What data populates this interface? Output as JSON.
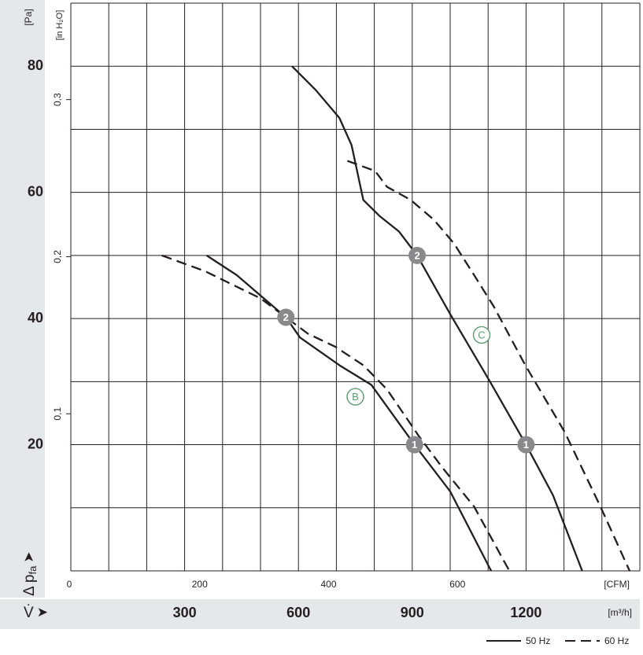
{
  "chart_data": {
    "type": "line",
    "y_unit": "[Pa]",
    "y2_unit": "[in H₂O]",
    "x_unit": "[m³/h]",
    "x2_unit": "[CFM]",
    "y_label": "Δ p",
    "y_label_sub": "fa",
    "y_arrow": "➤",
    "x_label": "V̇",
    "x_arrow": "➤",
    "xlim": [
      0,
      1500
    ],
    "ylim": [
      0,
      90
    ],
    "xticks": [
      300,
      600,
      900,
      1200
    ],
    "yticks": [
      20,
      40,
      60,
      80
    ],
    "x2lim": [
      0,
      883
    ],
    "x2ticks": [
      0,
      200,
      400,
      600
    ],
    "y2lim": [
      0,
      0.3614
    ],
    "y2ticks": [
      {
        "value": 0.3,
        "label": "0,3"
      },
      {
        "value": 0.2,
        "label": "0,2"
      },
      {
        "value": 0.1,
        "label": "0,1"
      }
    ],
    "xgrid": [
      0,
      100,
      200,
      300,
      400,
      500,
      600,
      700,
      800,
      900,
      1000,
      1100,
      1200,
      1300,
      1400,
      1500
    ],
    "ygrid": [
      0,
      10,
      20,
      30,
      40,
      50,
      60,
      70,
      80,
      90
    ],
    "legend": [
      {
        "name": "50 Hz",
        "style": "solid"
      },
      {
        "name": "60 Hz",
        "style": "dashed"
      }
    ],
    "curves": [
      {
        "label": "B",
        "label_x": 750,
        "label_y": 27.6,
        "series": [
          {
            "style": "solid",
            "x": [
              358,
              437,
              567,
              604,
              708,
              792,
              906,
              1000,
              1108
            ],
            "values": [
              50,
              46.9,
              40.2,
              37,
              32.6,
              29.5,
              20,
              12.6,
              0
            ]
          },
          {
            "style": "dashed",
            "x": [
              240,
              354,
              500,
              567,
              625,
              698,
              771,
              833,
              917,
              979,
              1063,
              1156
            ],
            "values": [
              50,
              47.5,
              43.2,
              40.2,
              37.6,
              35.5,
              32.6,
              28.8,
              21.4,
              16.4,
              10.2,
              0
            ]
          }
        ]
      },
      {
        "label": "C",
        "label_x": 1083,
        "label_y": 37.4,
        "series": [
          {
            "style": "solid",
            "x": [
              583,
              646,
              708,
              740,
              771,
              813,
              865,
              913,
              1000,
              1104,
              1200,
              1271,
              1348
            ],
            "values": [
              80,
              76.2,
              71.8,
              67.5,
              58.8,
              56.3,
              53.8,
              50,
              40.7,
              30.1,
              20,
              12,
              0
            ]
          },
          {
            "style": "dashed",
            "x": [
              729,
              802,
              833,
              896,
              958,
              1010,
              1063,
              1115,
              1198,
              1302,
              1396,
              1473
            ],
            "values": [
              65,
              63.4,
              60.9,
              58.8,
              55.6,
              51.9,
              46.9,
              41.9,
              32.6,
              22,
              10.2,
              0
            ]
          }
        ]
      }
    ],
    "points": [
      {
        "label": "2",
        "x": 567,
        "y": 40.2
      },
      {
        "label": "2",
        "x": 913,
        "y": 50
      },
      {
        "label": "1",
        "x": 906,
        "y": 20
      },
      {
        "label": "1",
        "x": 1200,
        "y": 20
      }
    ]
  }
}
